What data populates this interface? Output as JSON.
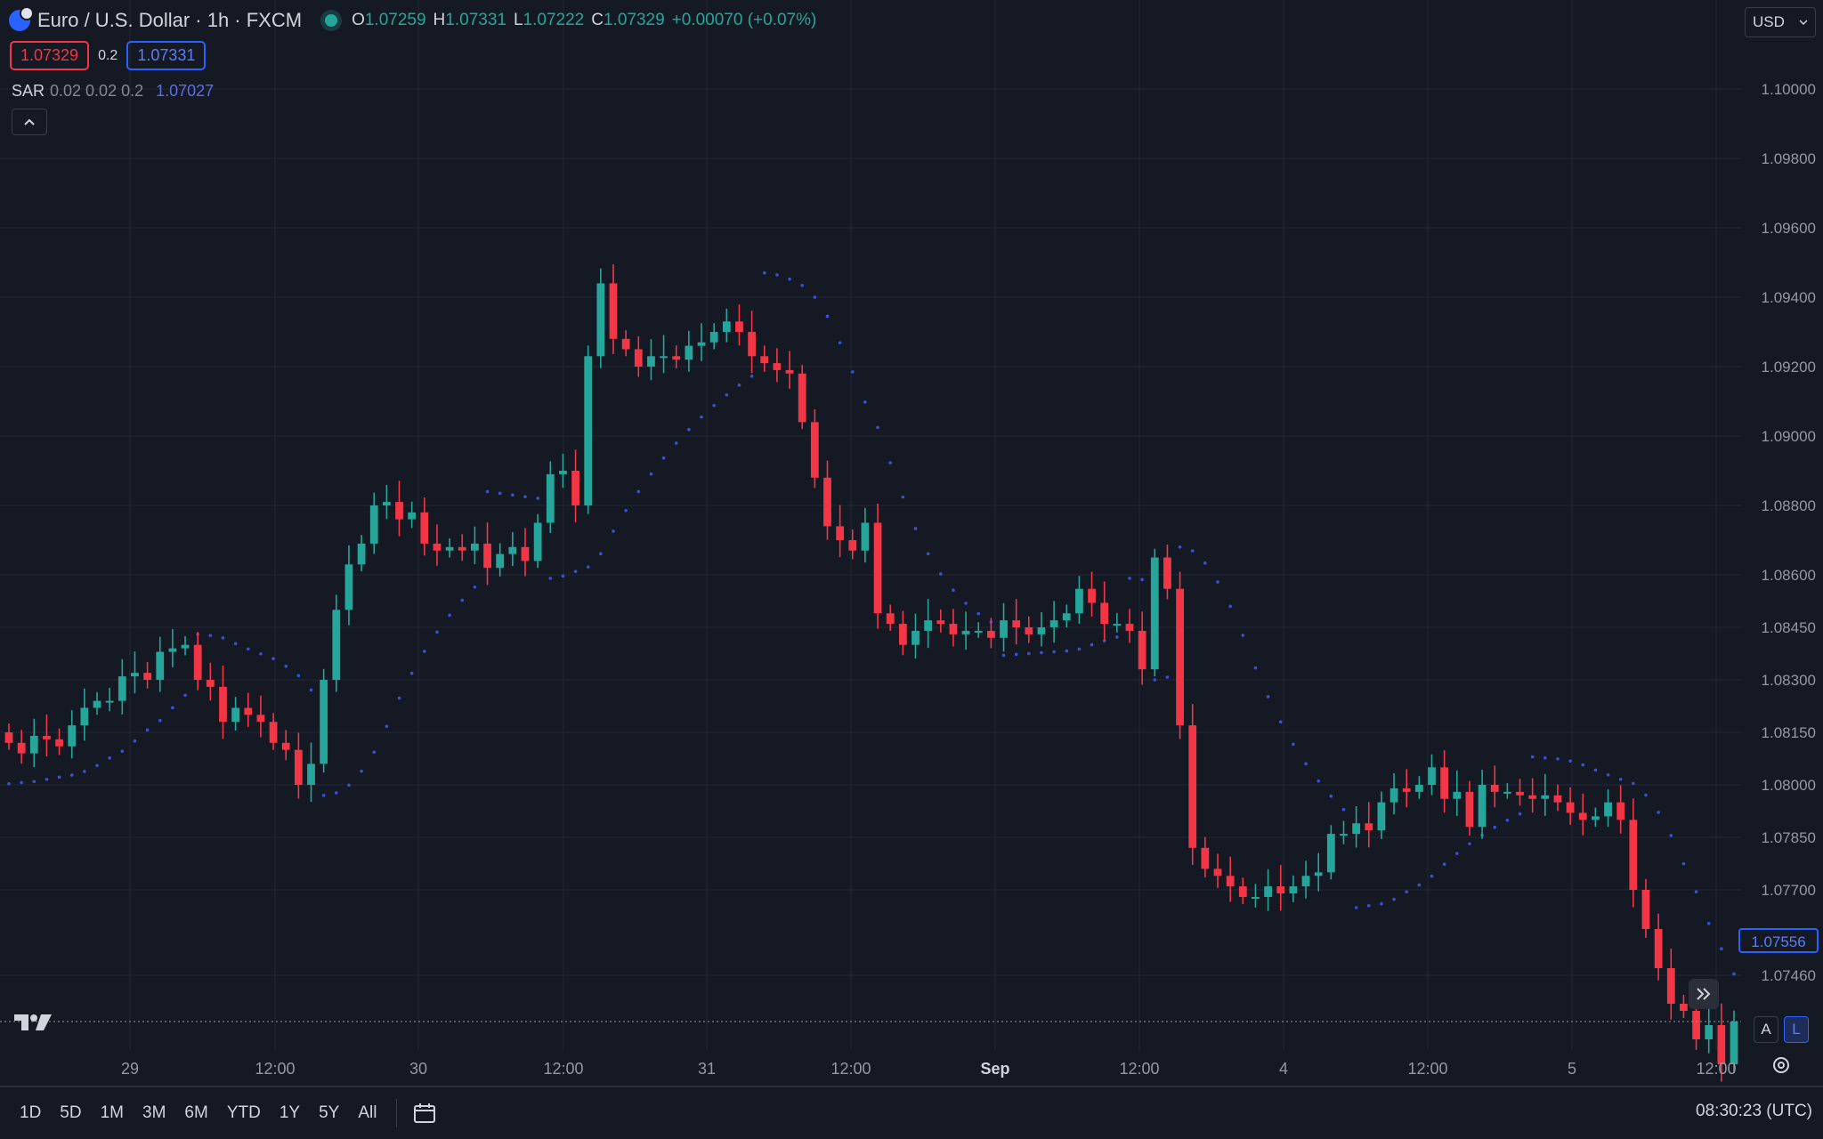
{
  "header": {
    "symbol": "Euro / U.S. Dollar · 1h · FXCM",
    "open_label": "O",
    "open": "1.07259",
    "high_label": "H",
    "high": "1.07331",
    "low_label": "L",
    "low": "1.07222",
    "close_label": "C",
    "close": "1.07329",
    "change": "+0.00070 (+0.07%)"
  },
  "quote": {
    "sell": "1.07329",
    "spread": "0.2",
    "buy": "1.07331"
  },
  "indicator": {
    "name": "SAR",
    "params": "0.02 0.02 0.2",
    "value": "1.07027"
  },
  "currency": "USD",
  "price_scale_badge": "1.07556",
  "scale_buttons": {
    "auto": "A",
    "log": "L"
  },
  "time_ranges": [
    "1D",
    "5D",
    "1M",
    "3M",
    "6M",
    "YTD",
    "1Y",
    "5Y",
    "All"
  ],
  "clock": "08:30:23 (UTC)",
  "colors": {
    "background": "#151924",
    "up": "#26a69a",
    "down": "#f23645",
    "sar": "#3b4fd8",
    "grid": "#232735",
    "text": "#d1d4dc",
    "axis_text": "#9598a1"
  },
  "icons": [
    "globe-flag-icon",
    "market-status-dot-icon",
    "chevron-up-icon",
    "chevron-down-icon",
    "tradingview-logo-icon",
    "double-chevron-right-icon",
    "settings-gear-icon",
    "calendar-range-icon"
  ],
  "chart_data": {
    "type": "candlestick",
    "title": "Euro / U.S. Dollar · 1h · FXCM",
    "indicator": "Parabolic SAR (0.02, 0.02, 0.2)",
    "y_ticks": [
      "1.10000",
      "1.09800",
      "1.09600",
      "1.09400",
      "1.09200",
      "1.09000",
      "1.08800",
      "1.08600",
      "1.08450",
      "1.08300",
      "1.08150",
      "1.08000",
      "1.07850",
      "1.07700",
      "1.07460"
    ],
    "x_ticks": [
      "29",
      "12:00",
      "30",
      "12:00",
      "31",
      "12:00",
      "Sep",
      "12:00",
      "4",
      "12:00",
      "5",
      "12:00"
    ],
    "close_series": [
      1.0812,
      1.0809,
      1.0814,
      1.0813,
      1.0811,
      1.0817,
      1.0822,
      1.0824,
      1.0824,
      1.0831,
      1.0832,
      1.083,
      1.0838,
      1.0839,
      1.084,
      1.083,
      1.0828,
      1.0818,
      1.0822,
      1.082,
      1.0818,
      1.0812,
      1.081,
      1.08,
      1.0806,
      1.083,
      1.085,
      1.0863,
      1.0869,
      1.088,
      1.0881,
      1.0876,
      1.0878,
      1.0869,
      1.0867,
      1.0868,
      1.0867,
      1.0869,
      1.0862,
      1.0866,
      1.0868,
      1.0864,
      1.0875,
      1.0889,
      1.089,
      1.088,
      1.0923,
      1.0944,
      1.0928,
      1.0925,
      1.092,
      1.0923,
      1.0923,
      1.0922,
      1.0926,
      1.0927,
      1.093,
      1.0933,
      1.093,
      1.0923,
      1.0921,
      1.0919,
      1.0918,
      1.0904,
      1.0888,
      1.0874,
      1.087,
      1.0867,
      1.0875,
      1.0849,
      1.0846,
      1.084,
      1.0844,
      1.0847,
      1.0846,
      1.0843,
      1.0844,
      1.0844,
      1.0842,
      1.0847,
      1.0845,
      1.0843,
      1.0845,
      1.0847,
      1.0849,
      1.0856,
      1.0852,
      1.0846,
      1.0846,
      1.0844,
      1.0833,
      1.0865,
      1.0856,
      1.0817,
      1.0782,
      1.0776,
      1.0774,
      1.0771,
      1.0768,
      1.0768,
      1.0771,
      1.0769,
      1.0771,
      1.0774,
      1.0775,
      1.0786,
      1.0786,
      1.0789,
      1.0787,
      1.0795,
      1.0799,
      1.0798,
      1.08,
      1.0805,
      1.0796,
      1.0798,
      1.0788,
      1.08,
      1.0798,
      1.0798,
      1.0797,
      1.0796,
      1.0797,
      1.0795,
      1.0792,
      1.079,
      1.0791,
      1.0795,
      1.079,
      1.077,
      1.0759,
      1.0748,
      1.0738,
      1.0736,
      1.0728,
      1.0732,
      1.0721,
      1.0733
    ]
  }
}
